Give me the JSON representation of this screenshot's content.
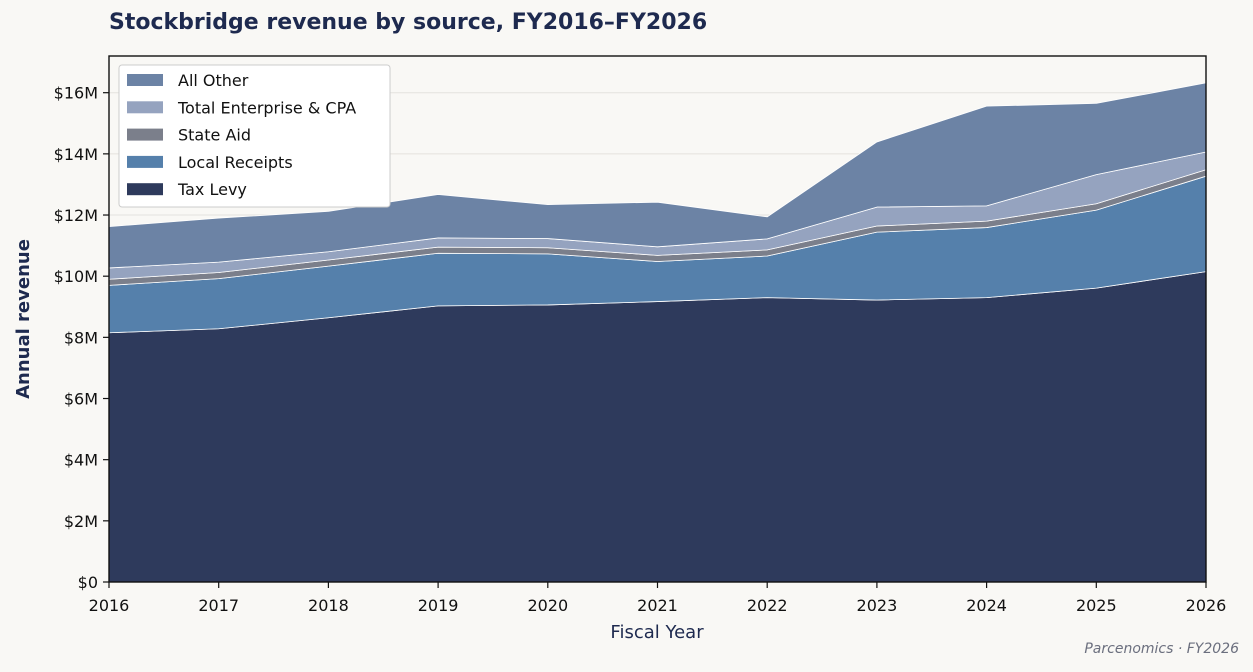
{
  "title": "Stockbridge revenue by source, FY2016–FY2026",
  "credit": "Parcenomics · FY2026",
  "chart_data": {
    "type": "area",
    "stacked": true,
    "title": "Stockbridge revenue by source, FY2016–FY2026",
    "xlabel": "Fiscal Year",
    "ylabel": "Annual revenue",
    "x": [
      2016,
      2017,
      2018,
      2019,
      2020,
      2021,
      2022,
      2023,
      2024,
      2025,
      2026
    ],
    "xticks": [
      "2016",
      "2017",
      "2018",
      "2019",
      "2020",
      "2021",
      "2022",
      "2023",
      "2024",
      "2025",
      "2026"
    ],
    "xlim": [
      2016,
      2026
    ],
    "ylim": [
      0,
      17200000
    ],
    "yticks": [
      0,
      2000000,
      4000000,
      6000000,
      8000000,
      10000000,
      12000000,
      14000000,
      16000000
    ],
    "ytick_labels": [
      "$0",
      "$2M",
      "$4M",
      "$6M",
      "$8M",
      "$10M",
      "$12M",
      "$14M",
      "$16M"
    ],
    "grid": true,
    "legend_position": "top-left",
    "series": [
      {
        "name": "Tax Levy",
        "color": "#2e3a5c",
        "values": [
          8150000,
          8280000,
          8640000,
          9030000,
          9060000,
          9170000,
          9300000,
          9220000,
          9300000,
          9610000,
          10150000
        ]
      },
      {
        "name": "Local Receipts",
        "color": "#5580ab",
        "values": [
          1550000,
          1640000,
          1690000,
          1720000,
          1670000,
          1310000,
          1360000,
          2220000,
          2290000,
          2550000,
          3120000
        ]
      },
      {
        "name": "State Aid",
        "color": "#7b7f8b",
        "values": [
          200000,
          200000,
          200000,
          200000,
          200000,
          200000,
          200000,
          200000,
          210000,
          210000,
          210000
        ]
      },
      {
        "name": "Total Enterprise & CPA",
        "color": "#95a3bf",
        "values": [
          370000,
          340000,
          270000,
          300000,
          300000,
          280000,
          360000,
          620000,
          500000,
          950000,
          580000
        ]
      },
      {
        "name": "All Other",
        "color": "#6c83a5",
        "values": [
          1350000,
          1440000,
          1320000,
          1420000,
          1110000,
          1460000,
          720000,
          2130000,
          3260000,
          2330000,
          2260000
        ]
      }
    ],
    "legend_order": [
      "All Other",
      "Total Enterprise & CPA",
      "State Aid",
      "Local Receipts",
      "Tax Levy"
    ]
  }
}
